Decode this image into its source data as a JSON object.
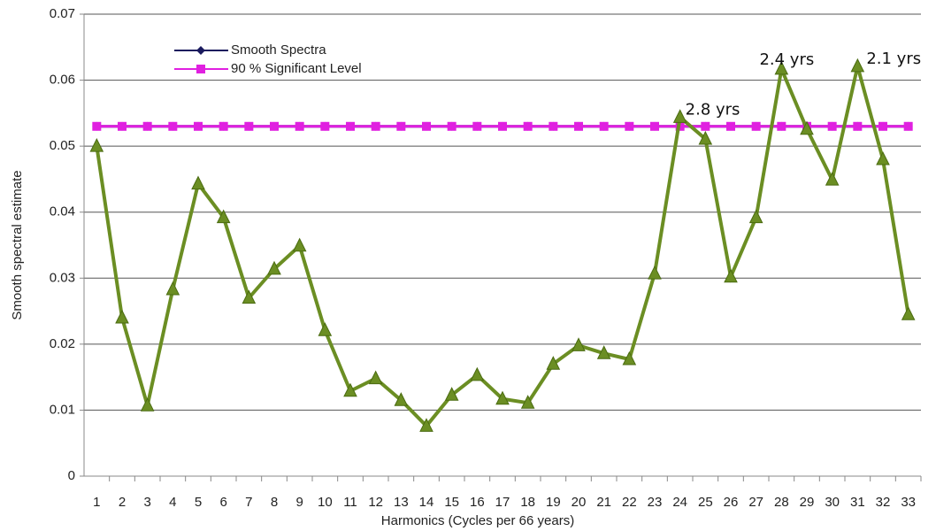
{
  "chart_data": {
    "type": "line",
    "x_label": "Harmonics (Cycles per 66 years)",
    "y_label": "Smooth spectral estimate",
    "categories": [
      1,
      2,
      3,
      4,
      5,
      6,
      7,
      8,
      9,
      10,
      11,
      12,
      13,
      14,
      15,
      16,
      17,
      18,
      19,
      20,
      21,
      22,
      23,
      24,
      25,
      26,
      27,
      28,
      29,
      30,
      31,
      32,
      33
    ],
    "series": [
      {
        "color": "#6b8e23",
        "marker": "triangle",
        "values": [
          0.05,
          0.024,
          0.0107,
          0.0283,
          0.0443,
          0.0392,
          0.027,
          0.0314,
          0.0349,
          0.0221,
          0.0129,
          0.0148,
          0.0115,
          0.0076,
          0.0123,
          0.0153,
          0.0117,
          0.0111,
          0.017,
          0.0198,
          0.0186,
          0.0177,
          0.0307,
          0.0544,
          0.0511,
          0.0302,
          0.0392,
          0.0617,
          0.0526,
          0.0449,
          0.0621,
          0.048,
          0.0245
        ]
      },
      {
        "name": "Smooth Spectra",
        "color": "#1a1a5e",
        "marker": "diamond",
        "values": [
          0.053,
          0.053,
          0.053,
          0.053,
          0.053,
          0.053,
          0.053,
          0.053,
          0.053,
          0.053,
          0.053,
          0.053,
          0.053,
          0.053,
          0.053,
          0.053,
          0.053,
          0.053,
          0.053,
          0.053,
          0.053,
          0.053,
          0.053,
          0.053,
          0.053,
          0.053,
          0.053,
          0.053,
          0.053,
          0.053,
          0.053,
          0.053,
          0.053
        ]
      },
      {
        "name": "90 % Significant Level",
        "color": "#e020e0",
        "marker": "square",
        "values": [
          0.053,
          0.053,
          0.053,
          0.053,
          0.053,
          0.053,
          0.053,
          0.053,
          0.053,
          0.053,
          0.053,
          0.053,
          0.053,
          0.053,
          0.053,
          0.053,
          0.053,
          0.053,
          0.053,
          0.053,
          0.053,
          0.053,
          0.053,
          0.053,
          0.053,
          0.053,
          0.053,
          0.053,
          0.053,
          0.053,
          0.053,
          0.053,
          0.053
        ]
      }
    ],
    "annotations": [
      {
        "text": "2.8 yrs",
        "x": 24
      },
      {
        "text": "2.4 yrs",
        "x": 28
      },
      {
        "text": "2.1 yrs",
        "x": 31
      }
    ],
    "ylim": [
      0,
      0.07
    ],
    "yticks": [
      0,
      0.01,
      0.02,
      0.03,
      0.04,
      0.05,
      0.06,
      0.07
    ],
    "grid": true,
    "legend": "upper left"
  }
}
